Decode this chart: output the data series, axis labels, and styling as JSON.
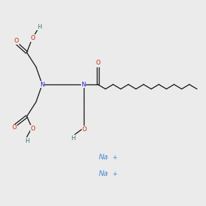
{
  "bg_color": "#ebebeb",
  "bond_color": "#1a1a1a",
  "N_color": "#1a1acc",
  "O_color": "#cc2200",
  "H_color": "#337777",
  "Na_color": "#4488cc",
  "fig_size": [
    3.0,
    3.0
  ],
  "dpi": 100,
  "xlim": [
    0,
    10
  ],
  "ylim": [
    0,
    10
  ]
}
